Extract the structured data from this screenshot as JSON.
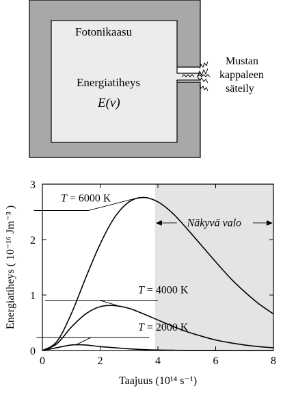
{
  "cavity": {
    "gas_label": "Fotonikaasu",
    "energy_label": "Energiatiheys",
    "symbol": "E(ν)",
    "radiation_label": [
      "Mustan",
      "kappaleen",
      "säteily"
    ],
    "colors": {
      "wall": "#a8a8a8",
      "interior": "#ececec",
      "outline": "#000000"
    }
  },
  "chart_data": {
    "type": "line",
    "title": "",
    "xlabel": "Taajuus (10¹⁴ s⁻¹)",
    "ylabel": "Energiatiheys  ( 10⁻¹⁶ Jm⁻³ )",
    "xlim": [
      0,
      8
    ],
    "ylim": [
      0,
      3
    ],
    "xticks": [
      0,
      2,
      4,
      6,
      8
    ],
    "yticks": [
      0,
      1,
      2,
      3
    ],
    "grid": false,
    "shaded_region": {
      "x": [
        3.9,
        8
      ],
      "label": "Näkyvä valo",
      "color": "#e4e4e4"
    },
    "series": [
      {
        "name": "T = 6000 K",
        "x": [
          0,
          0.5,
          1,
          1.5,
          2,
          2.5,
          3,
          3.5,
          4,
          4.5,
          5,
          5.5,
          6,
          6.5,
          7,
          7.5,
          8
        ],
        "y": [
          0,
          0.16,
          0.66,
          1.31,
          1.92,
          2.4,
          2.68,
          2.76,
          2.68,
          2.48,
          2.2,
          1.9,
          1.6,
          1.31,
          1.06,
          0.84,
          0.66
        ]
      },
      {
        "name": "T = 4000 K",
        "x": [
          0,
          0.5,
          1,
          1.5,
          2,
          2.5,
          3,
          3.5,
          4,
          4.5,
          5,
          5.5,
          6,
          6.5,
          7,
          7.5,
          8
        ],
        "y": [
          0,
          0.12,
          0.42,
          0.66,
          0.79,
          0.81,
          0.76,
          0.66,
          0.55,
          0.44,
          0.34,
          0.26,
          0.19,
          0.14,
          0.1,
          0.07,
          0.05
        ]
      },
      {
        "name": "T = 2000 K",
        "x": [
          0,
          0.5,
          1,
          1.5,
          2,
          2.5,
          3,
          3.5,
          4,
          4.5,
          5,
          5.5,
          6,
          7,
          8
        ],
        "y": [
          0,
          0.05,
          0.1,
          0.1,
          0.07,
          0.05,
          0.03,
          0.017,
          0.009,
          0.005,
          0.002,
          0.001,
          0.0005,
          0,
          0
        ]
      }
    ]
  }
}
